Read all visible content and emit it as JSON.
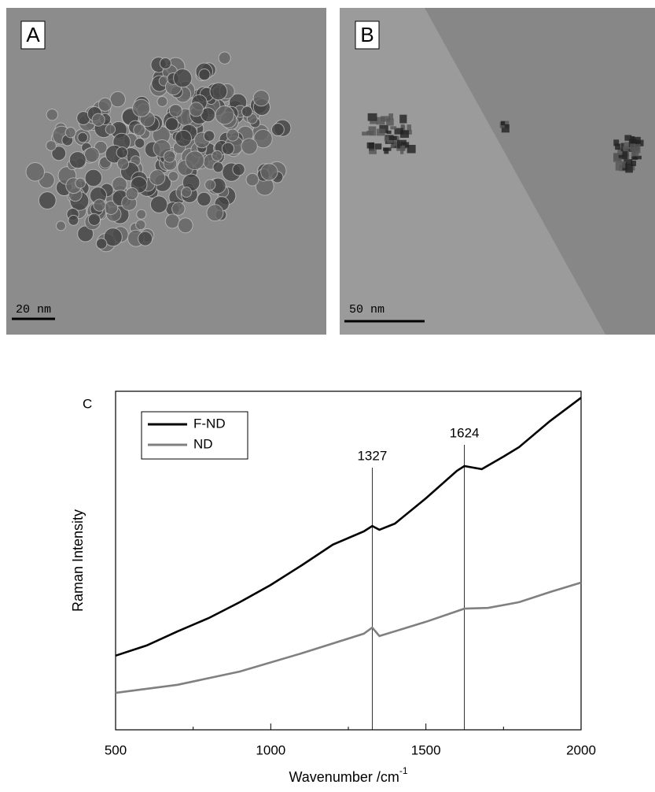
{
  "panels": [
    {
      "label": "A",
      "scale_bar": "20 nm"
    },
    {
      "label": "B",
      "scale_bar": "50 nm"
    }
  ],
  "chart_data": {
    "type": "line",
    "panel_label": "C",
    "xlabel": "Wavenumber /cm",
    "xlabel_superscript": "-1",
    "ylabel": "Raman Intensity",
    "xlim": [
      500,
      2000
    ],
    "xticks": [
      500,
      1000,
      1500,
      2000
    ],
    "xminor_ticks": [
      750,
      1250,
      1750
    ],
    "ylim": [
      0,
      100
    ],
    "legend": "upper left",
    "vlines": [
      1327,
      1624
    ],
    "series": [
      {
        "name": "F-ND",
        "color": "#000000",
        "x": [
          500,
          600,
          700,
          800,
          900,
          1000,
          1100,
          1200,
          1300,
          1327,
          1350,
          1400,
          1500,
          1600,
          1624,
          1680,
          1750,
          1800,
          1900,
          2000
        ],
        "values": [
          21.9,
          24.9,
          29.1,
          33.0,
          37.7,
          42.8,
          48.6,
          54.7,
          58.6,
          60.2,
          59.1,
          60.9,
          68.4,
          76.5,
          77.9,
          77.0,
          80.7,
          83.5,
          91.2,
          98.1
        ]
      },
      {
        "name": "ND",
        "color": "#808080",
        "x": [
          500,
          700,
          900,
          1100,
          1300,
          1327,
          1350,
          1500,
          1624,
          1700,
          1800,
          1900,
          2000
        ],
        "values": [
          10.9,
          13.3,
          17.2,
          22.6,
          28.4,
          30.2,
          27.7,
          31.9,
          35.8,
          36.0,
          37.7,
          40.7,
          43.5
        ]
      }
    ]
  }
}
